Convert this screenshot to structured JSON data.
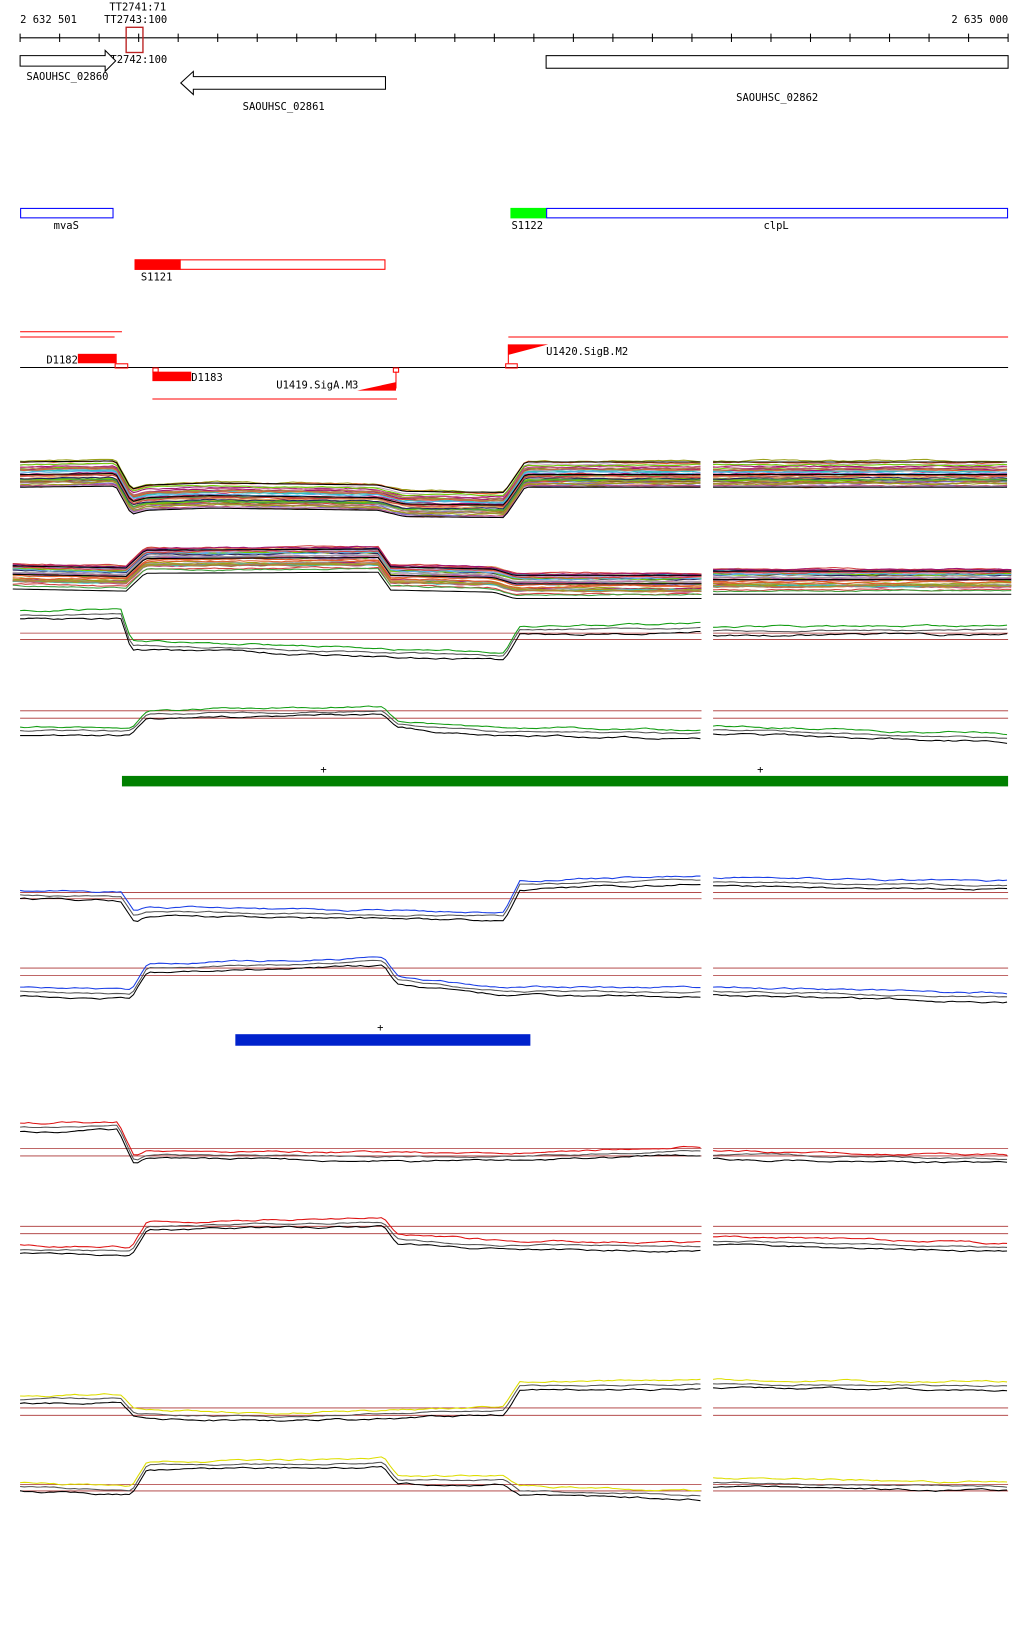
{
  "ruler": {
    "start_label": "2 632 501",
    "end_label": "2 635 000"
  },
  "terminators": [
    {
      "label": "TT2743:100"
    },
    {
      "label": "TT2741:71"
    },
    {
      "label": "TT2742:100"
    }
  ],
  "genes": [
    {
      "label": "SAOUHSC_02860",
      "strand": "+"
    },
    {
      "label": "SAOUHSC_02861",
      "strand": "-"
    },
    {
      "label": "SAOUHSC_02862",
      "strand": "+"
    }
  ],
  "transcripts": [
    {
      "label": "mvaS",
      "color": "#0000ff"
    },
    {
      "label": "S1122",
      "color": "#00ff00"
    },
    {
      "label": "clpL",
      "color": "#0000ff"
    },
    {
      "label": "S1121",
      "color": "#ff0000"
    }
  ],
  "promoters": [
    {
      "label": "D1182"
    },
    {
      "label": "D1183"
    },
    {
      "label": "U1419.SigA.M3"
    },
    {
      "label": "U1420.SigB.M2"
    }
  ],
  "segments": [
    {
      "marker": "+",
      "color": "#008000"
    },
    {
      "marker": "+",
      "color": "#008000"
    },
    {
      "marker": "+",
      "color": "#0022cc"
    }
  ],
  "colors": {
    "feature_red": "#ff0000",
    "green_track": "#139d13",
    "blue_track": "#1a3ee6",
    "red_track": "#dd1111",
    "yellow_track": "#dddd00",
    "reference_line": "#aa3333"
  }
}
